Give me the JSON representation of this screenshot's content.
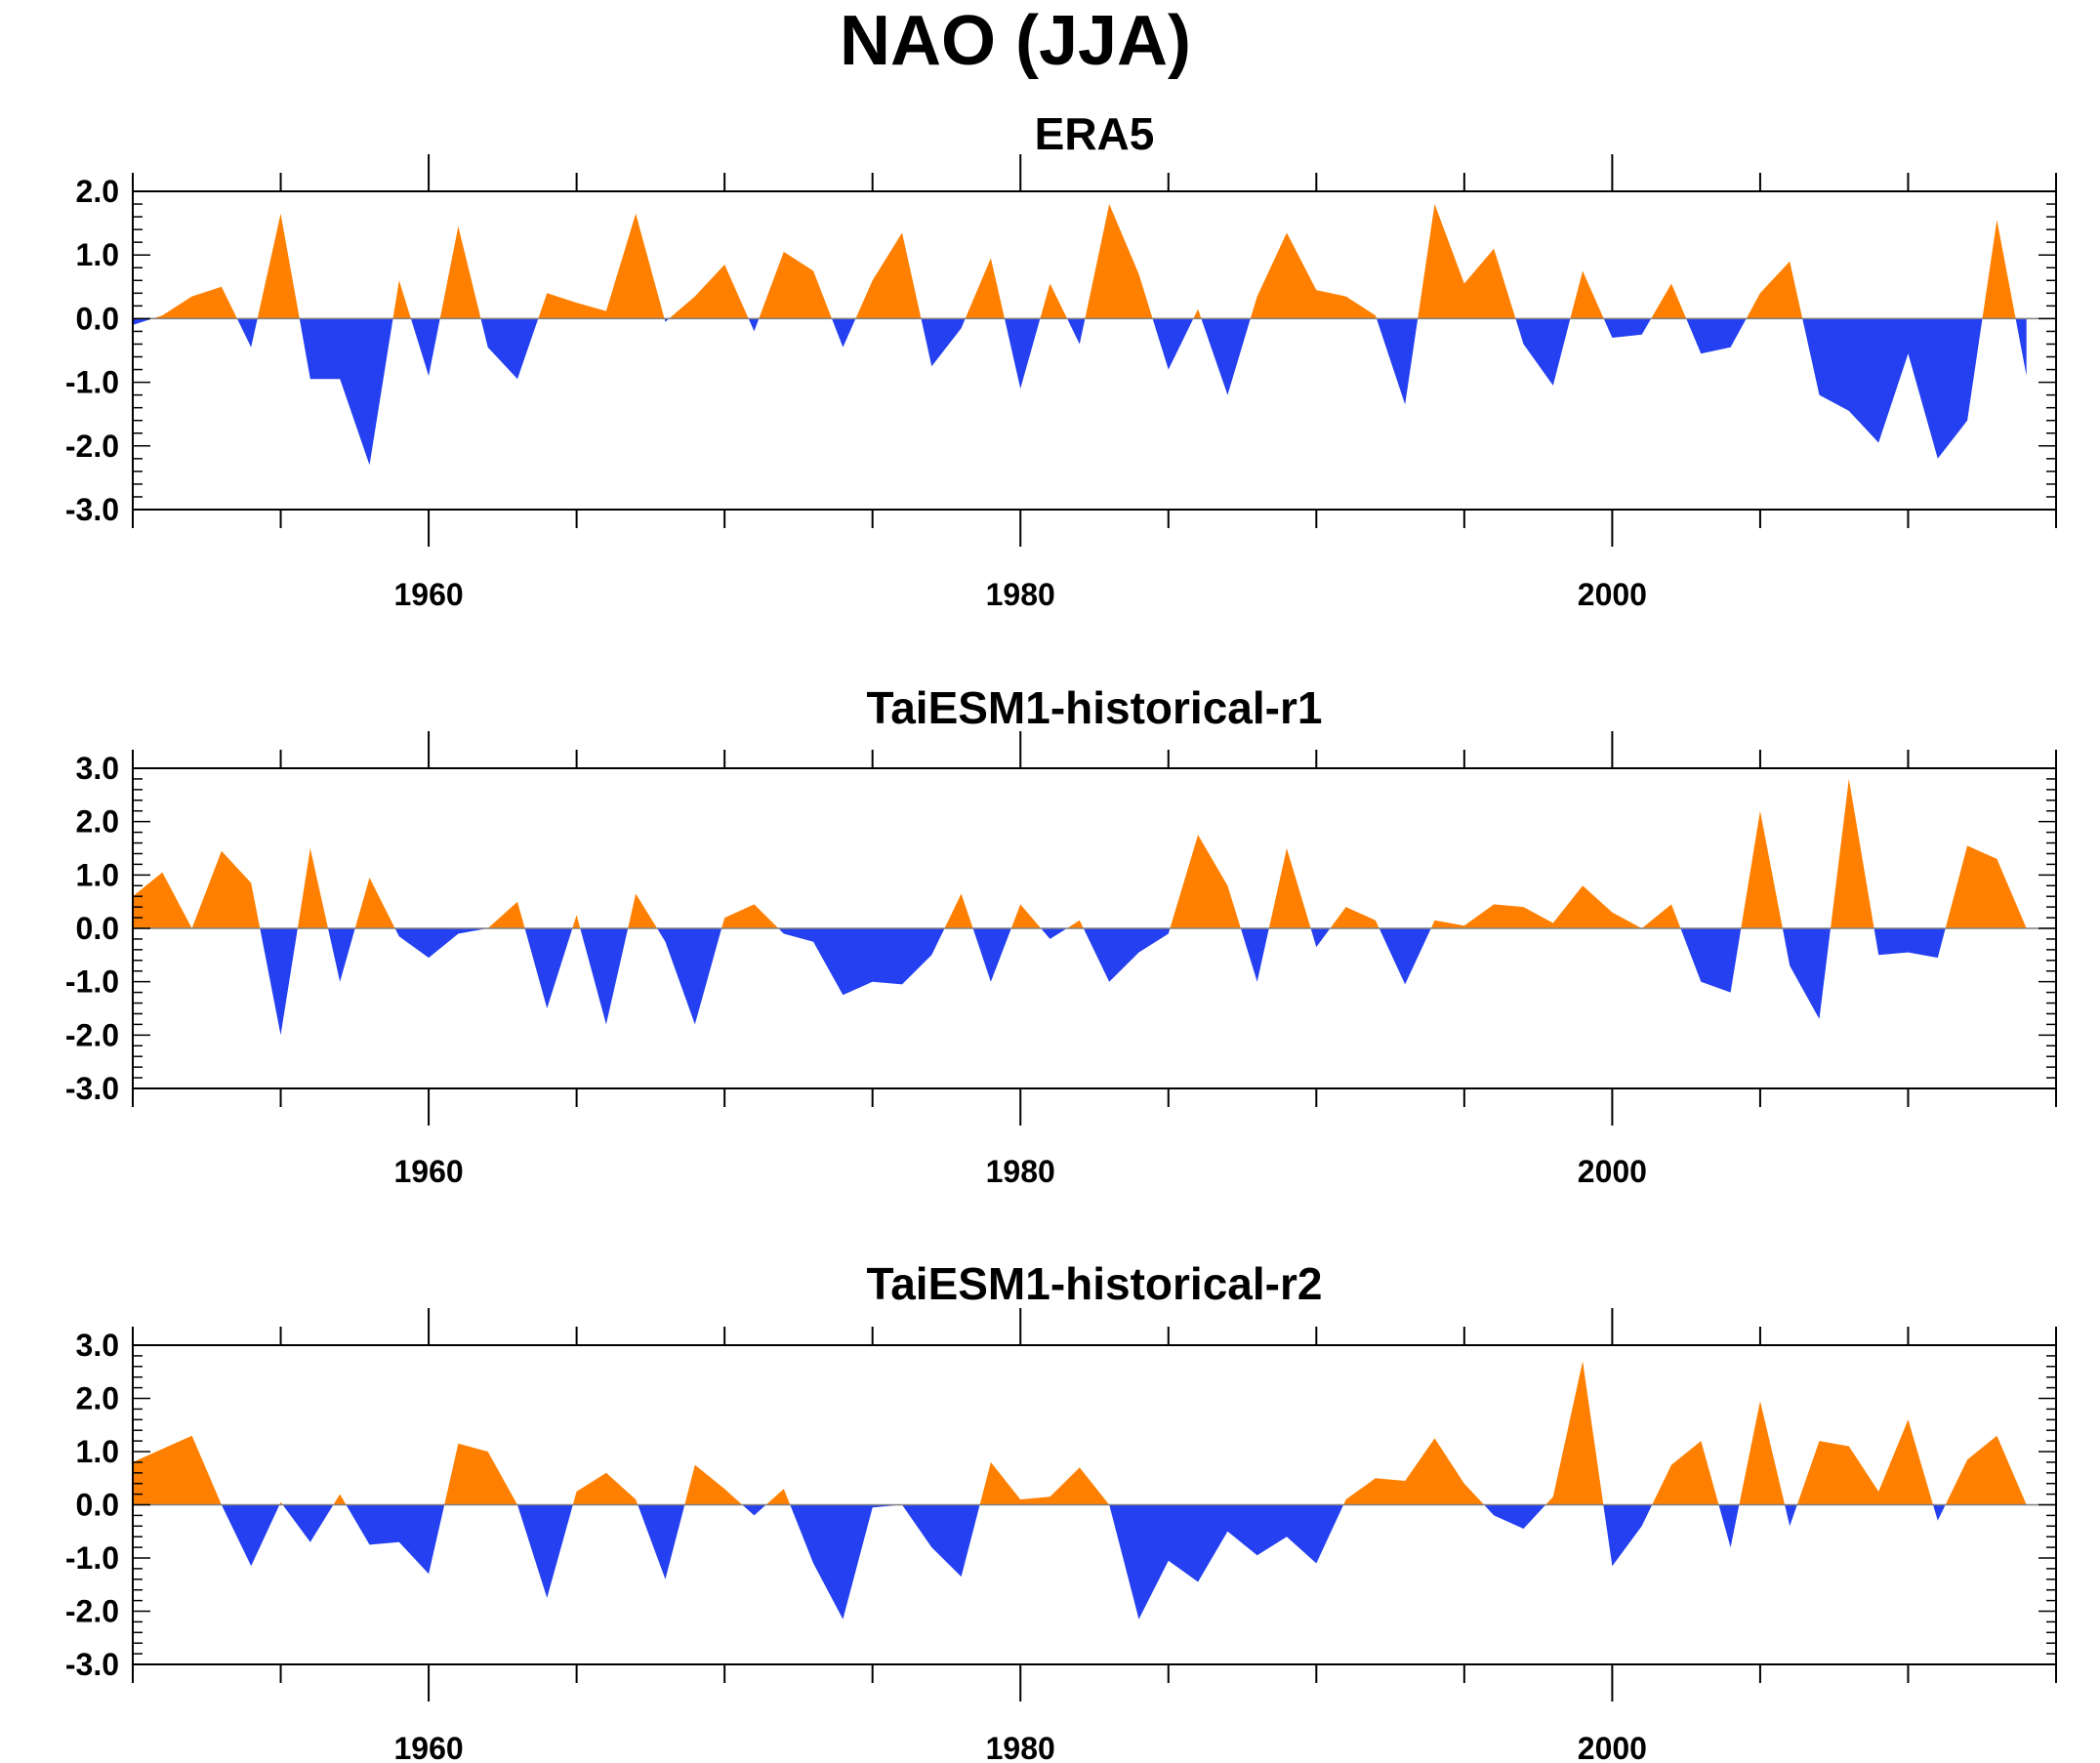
{
  "figure": {
    "title": "NAO (JJA)"
  },
  "colors": {
    "positive": "#ff8000",
    "negative": "#2440f0",
    "frame": "#000000",
    "zero_line": "#808080"
  },
  "chart_data": [
    {
      "type": "area",
      "title": "ERA5",
      "xlabel": "",
      "ylabel": "",
      "x_start": 1950,
      "x_end": 2014,
      "xlim": [
        1950,
        2015
      ],
      "ylim": [
        -3.0,
        2.0
      ],
      "xticks": [
        1960,
        1980,
        2000
      ],
      "yticks": [
        "2.0",
        "1.0",
        "0.0",
        "-1.0",
        "-2.0",
        "-3.0"
      ],
      "grid": false,
      "values": [
        -0.1,
        0.05,
        0.35,
        0.5,
        -0.45,
        1.65,
        -0.95,
        -0.95,
        -2.3,
        0.6,
        -0.9,
        1.45,
        -0.45,
        -0.95,
        0.4,
        0.25,
        0.12,
        1.65,
        -0.05,
        0.35,
        0.85,
        -0.2,
        1.05,
        0.75,
        -0.45,
        0.6,
        1.35,
        -0.75,
        -0.15,
        0.95,
        -1.1,
        0.55,
        -0.4,
        1.8,
        0.7,
        -0.8,
        0.15,
        -1.2,
        0.35,
        1.35,
        0.45,
        0.35,
        0.05,
        -1.35,
        1.8,
        0.55,
        1.1,
        -0.4,
        -1.05,
        0.75,
        -0.3,
        -0.25,
        0.55,
        -0.55,
        -0.45,
        0.4,
        0.9,
        -1.2,
        -1.45,
        -1.95,
        -0.55,
        -2.2,
        -1.6,
        1.55,
        -0.9
      ]
    },
    {
      "type": "area",
      "title": "TaiESM1-historical-r1",
      "xlabel": "",
      "ylabel": "",
      "x_start": 1950,
      "x_end": 2014,
      "xlim": [
        1950,
        2015
      ],
      "ylim": [
        -3.0,
        3.0
      ],
      "xticks": [
        1960,
        1980,
        2000
      ],
      "yticks": [
        "3.0",
        "2.0",
        "1.0",
        "0.0",
        "-1.0",
        "-2.0",
        "-3.0"
      ],
      "grid": false,
      "values": [
        0.6,
        1.05,
        0.0,
        1.45,
        0.85,
        -2.0,
        1.5,
        -1.0,
        0.95,
        -0.15,
        -0.55,
        -0.1,
        0.0,
        0.5,
        -1.5,
        0.25,
        -1.8,
        0.65,
        -0.25,
        -1.8,
        0.2,
        0.45,
        -0.1,
        -0.25,
        -1.25,
        -1.0,
        -1.05,
        -0.5,
        0.65,
        -1.0,
        0.45,
        -0.2,
        0.15,
        -1.0,
        -0.45,
        -0.1,
        1.75,
        0.8,
        -1.0,
        1.5,
        -0.35,
        0.4,
        0.15,
        -1.05,
        0.15,
        0.05,
        0.45,
        0.4,
        0.1,
        0.8,
        0.3,
        0.0,
        0.45,
        -1.0,
        -1.2,
        2.2,
        -0.7,
        -1.7,
        2.8,
        -0.5,
        -0.45,
        -0.55,
        1.55,
        1.3,
        0.0
      ]
    },
    {
      "type": "area",
      "title": "TaiESM1-historical-r2",
      "xlabel": "",
      "ylabel": "",
      "x_start": 1950,
      "x_end": 2014,
      "xlim": [
        1950,
        2015
      ],
      "ylim": [
        -3.0,
        3.0
      ],
      "xticks": [
        1960,
        1980,
        2000
      ],
      "yticks": [
        "3.0",
        "2.0",
        "1.0",
        "0.0",
        "-1.0",
        "-2.0",
        "-3.0"
      ],
      "grid": false,
      "values": [
        0.8,
        1.05,
        1.3,
        0.0,
        -1.15,
        0.05,
        -0.7,
        0.2,
        -0.75,
        -0.7,
        -1.3,
        1.15,
        1.0,
        0.0,
        -1.75,
        0.25,
        0.6,
        0.1,
        -1.4,
        0.75,
        0.3,
        -0.2,
        0.3,
        -1.1,
        -2.15,
        -0.05,
        0.0,
        -0.8,
        -1.35,
        0.8,
        0.1,
        0.15,
        0.7,
        0.0,
        -2.15,
        -1.05,
        -1.45,
        -0.5,
        -0.95,
        -0.6,
        -1.1,
        0.1,
        0.5,
        0.45,
        1.25,
        0.4,
        -0.2,
        -0.45,
        0.15,
        2.7,
        -1.15,
        -0.4,
        0.75,
        1.2,
        -0.8,
        1.95,
        -0.4,
        1.2,
        1.1,
        0.25,
        1.6,
        -0.3,
        0.85,
        1.3,
        0.0
      ]
    }
  ]
}
